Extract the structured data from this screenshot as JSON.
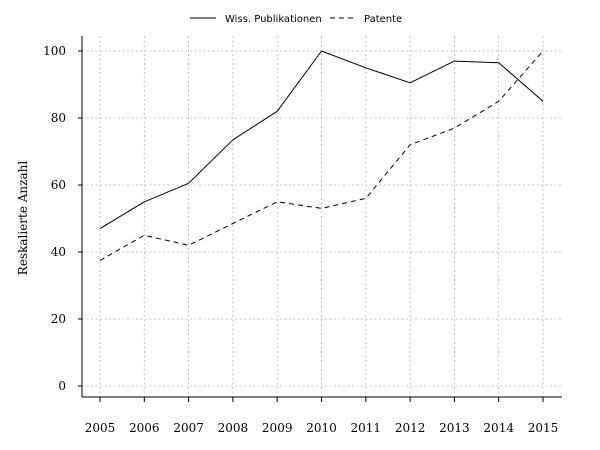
{
  "chart_data": {
    "type": "line",
    "x": [
      2005,
      2006,
      2007,
      2008,
      2009,
      2010,
      2011,
      2012,
      2013,
      2014,
      2015
    ],
    "series": [
      {
        "name": "Wiss. Publikationen",
        "values": [
          47,
          55,
          60.5,
          73.5,
          82,
          100,
          95,
          90.5,
          97,
          96.5,
          85
        ],
        "line_style": "solid"
      },
      {
        "name": "Patente",
        "values": [
          37.5,
          45,
          42,
          48.5,
          55,
          53,
          56,
          72,
          77,
          85,
          100
        ],
        "line_style": "dashed"
      }
    ],
    "title": "",
    "xlabel": "",
    "ylabel": "Reskalierte Anzahl",
    "ylim": [
      -3,
      103
    ],
    "yticks": [
      "0",
      "20",
      "40",
      "60",
      "80",
      "100"
    ],
    "xticks": [
      "2005",
      "2006",
      "2007",
      "2008",
      "2009",
      "2010",
      "2011",
      "2012",
      "2013",
      "2014",
      "2015"
    ],
    "grid": true,
    "legend_position": "top",
    "line_color": "#000000",
    "grid_color": "#b5b5b5"
  }
}
